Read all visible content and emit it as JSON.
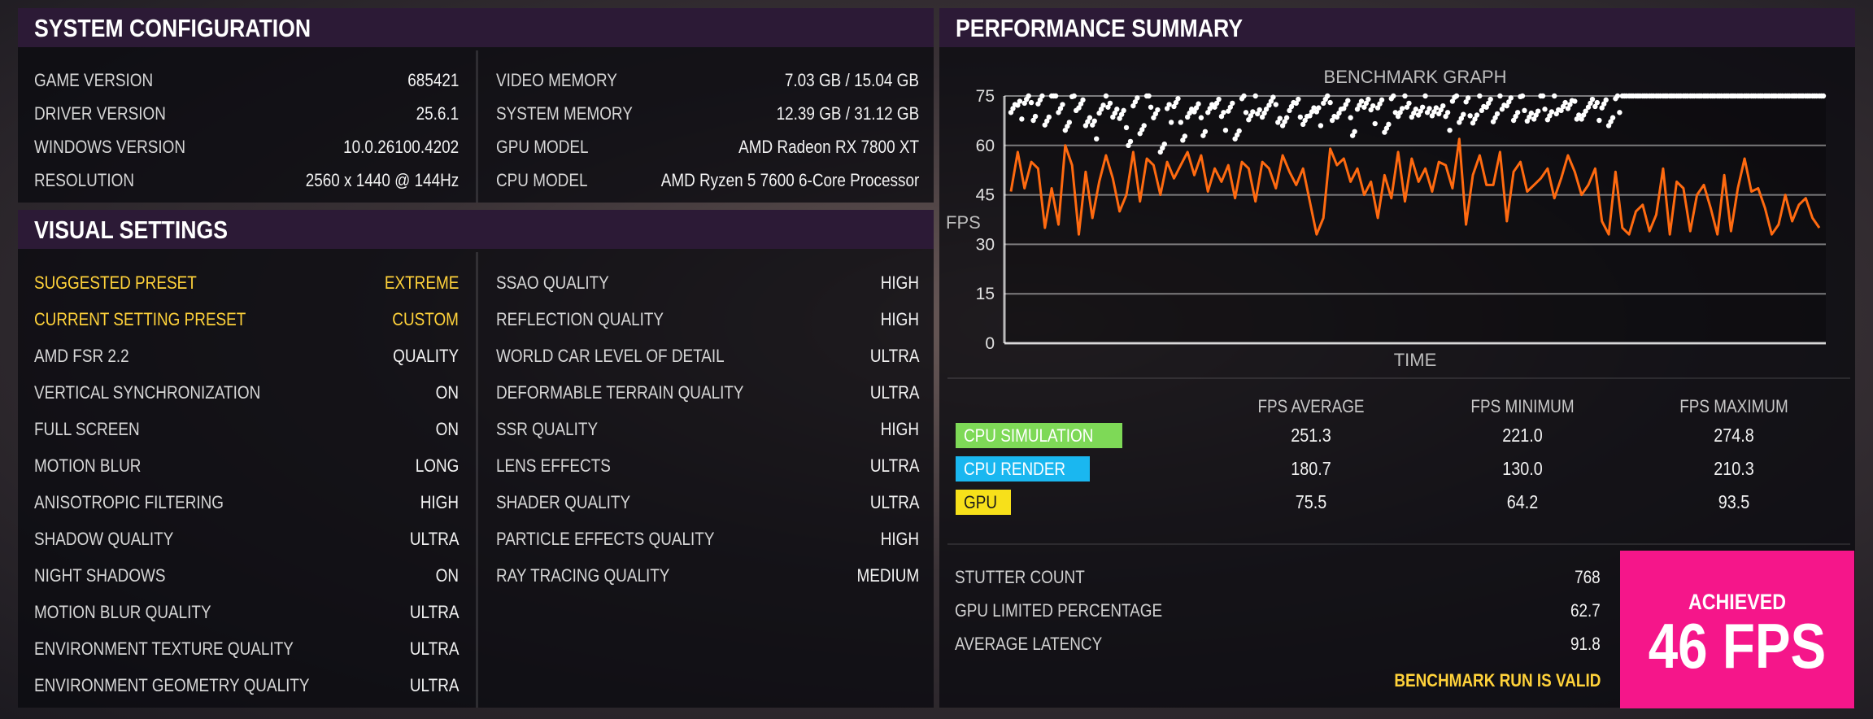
{
  "system_config": {
    "title": "SYSTEM CONFIGURATION",
    "left": [
      {
        "label": "GAME VERSION",
        "value": "685421"
      },
      {
        "label": "DRIVER VERSION",
        "value": "25.6.1"
      },
      {
        "label": "WINDOWS VERSION",
        "value": "10.0.26100.4202"
      },
      {
        "label": "RESOLUTION",
        "value": "2560 x 1440 @ 144Hz"
      }
    ],
    "right": [
      {
        "label": "VIDEO MEMORY",
        "value": "7.03 GB / 15.04 GB"
      },
      {
        "label": "SYSTEM MEMORY",
        "value": "12.39 GB / 31.12 GB"
      },
      {
        "label": "GPU MODEL",
        "value": "AMD  Radeon RX 7800 XT"
      },
      {
        "label": "CPU MODEL",
        "value": "AMD Ryzen 5 7600 6-Core Processor"
      }
    ]
  },
  "visual_settings": {
    "title": "VISUAL SETTINGS",
    "left": [
      {
        "label": "SUGGESTED PRESET",
        "value": "EXTREME",
        "highlight": true
      },
      {
        "label": "CURRENT SETTING PRESET",
        "value": "CUSTOM",
        "highlight": true
      },
      {
        "label": "AMD FSR 2.2",
        "value": "QUALITY"
      },
      {
        "label": "VERTICAL SYNCHRONIZATION",
        "value": "ON"
      },
      {
        "label": "FULL SCREEN",
        "value": "ON"
      },
      {
        "label": "MOTION BLUR",
        "value": "LONG"
      },
      {
        "label": "ANISOTROPIC FILTERING",
        "value": "HIGH"
      },
      {
        "label": "SHADOW QUALITY",
        "value": "ULTRA"
      },
      {
        "label": "NIGHT SHADOWS",
        "value": "ON"
      },
      {
        "label": "MOTION BLUR QUALITY",
        "value": "ULTRA"
      },
      {
        "label": "ENVIRONMENT TEXTURE QUALITY",
        "value": "ULTRA"
      },
      {
        "label": "ENVIRONMENT GEOMETRY QUALITY",
        "value": "ULTRA"
      }
    ],
    "right": [
      {
        "label": "SSAO QUALITY",
        "value": "HIGH"
      },
      {
        "label": "REFLECTION QUALITY",
        "value": "HIGH"
      },
      {
        "label": "WORLD CAR LEVEL OF DETAIL",
        "value": "ULTRA"
      },
      {
        "label": "DEFORMABLE TERRAIN QUALITY",
        "value": "ULTRA"
      },
      {
        "label": "SSR QUALITY",
        "value": "HIGH"
      },
      {
        "label": "LENS EFFECTS",
        "value": "ULTRA"
      },
      {
        "label": "SHADER QUALITY",
        "value": "ULTRA"
      },
      {
        "label": "PARTICLE EFFECTS QUALITY",
        "value": "HIGH"
      },
      {
        "label": "RAY TRACING QUALITY",
        "value": "MEDIUM"
      }
    ]
  },
  "performance": {
    "title": "PERFORMANCE SUMMARY",
    "columns": [
      "FPS AVERAGE",
      "FPS MINIMUM",
      "FPS MAXIMUM"
    ],
    "rows": [
      {
        "label": "CPU SIMULATION",
        "color": "#7ed957",
        "values": [
          "251.3",
          "221.0",
          "274.8"
        ]
      },
      {
        "label": "CPU RENDER",
        "color": "#1ab7f0",
        "values": [
          "180.7",
          "130.0",
          "210.3"
        ]
      },
      {
        "label": "GPU",
        "color": "#f7e01a",
        "values": [
          "75.5",
          "64.2",
          "93.5"
        ]
      }
    ],
    "stats": [
      {
        "label": "STUTTER COUNT",
        "value": "768"
      },
      {
        "label": "GPU LIMITED PERCENTAGE",
        "value": "62.7"
      },
      {
        "label": "AVERAGE LATENCY",
        "value": "91.8"
      }
    ],
    "valid_text": "BENCHMARK RUN IS VALID",
    "achieved_label": "ACHIEVED",
    "achieved_value": "46 FPS"
  },
  "chart_data": {
    "type": "line",
    "title": "BENCHMARK GRAPH",
    "xlabel": "TIME",
    "ylabel": "FPS",
    "ylim": [
      0,
      75
    ],
    "yticks": [
      0,
      15,
      30,
      45,
      60,
      75
    ],
    "grid": true,
    "series": [
      {
        "color": "#ff6a10",
        "values": [
          46,
          58,
          47,
          55,
          53,
          35,
          47,
          36,
          60,
          54,
          33,
          52,
          38,
          49,
          57,
          50,
          40,
          45,
          58,
          43,
          56,
          54,
          45,
          55,
          50,
          54,
          58,
          51,
          57,
          46,
          53,
          49,
          54,
          44,
          55,
          53,
          43,
          55,
          53,
          47,
          57,
          52,
          48,
          53,
          43,
          33,
          38,
          59,
          54,
          56,
          49,
          53,
          45,
          49,
          38,
          51,
          44,
          58,
          43,
          56,
          49,
          53,
          46,
          55,
          54,
          47,
          62,
          36,
          51,
          57,
          48,
          48,
          58,
          37,
          52,
          55,
          46,
          48,
          50,
          53,
          44,
          50,
          57,
          52,
          45,
          48,
          53,
          37,
          33,
          52,
          35,
          33,
          40,
          42,
          34,
          39,
          53,
          33,
          49,
          47,
          34,
          45,
          48,
          41,
          33,
          51,
          34,
          47,
          56,
          46,
          47,
          41,
          33,
          36,
          45,
          37,
          42,
          44,
          38,
          35
        ]
      },
      {
        "type": "scatter",
        "color": "#ffffff",
        "values": [
          73,
          71,
          74,
          70,
          72,
          68,
          75,
          70,
          67,
          73,
          72,
          69,
          65,
          71,
          74,
          68,
          70,
          63,
          72,
          66,
          74,
          69,
          61,
          70,
          73,
          64,
          68,
          72,
          66,
          70,
          74,
          67,
          71,
          65,
          73,
          69,
          72,
          68,
          74,
          70,
          66,
          73,
          71,
          67,
          72,
          69,
          74,
          70,
          68,
          73,
          66,
          71,
          74,
          69,
          72,
          67,
          73,
          70,
          74,
          68,
          71,
          73,
          69,
          72,
          67,
          74,
          70,
          72,
          68,
          73,
          71,
          69,
          74,
          72,
          70,
          73,
          68,
          71,
          74,
          69,
          72,
          70,
          73,
          71,
          68,
          74,
          70,
          72,
          69,
          73,
          75,
          75,
          75,
          75,
          75,
          75,
          75,
          75,
          75,
          75,
          75,
          75,
          75,
          75,
          75,
          75,
          75,
          75,
          75,
          75,
          75,
          75,
          75,
          75,
          75,
          75,
          75,
          75,
          75,
          75
        ]
      }
    ]
  }
}
